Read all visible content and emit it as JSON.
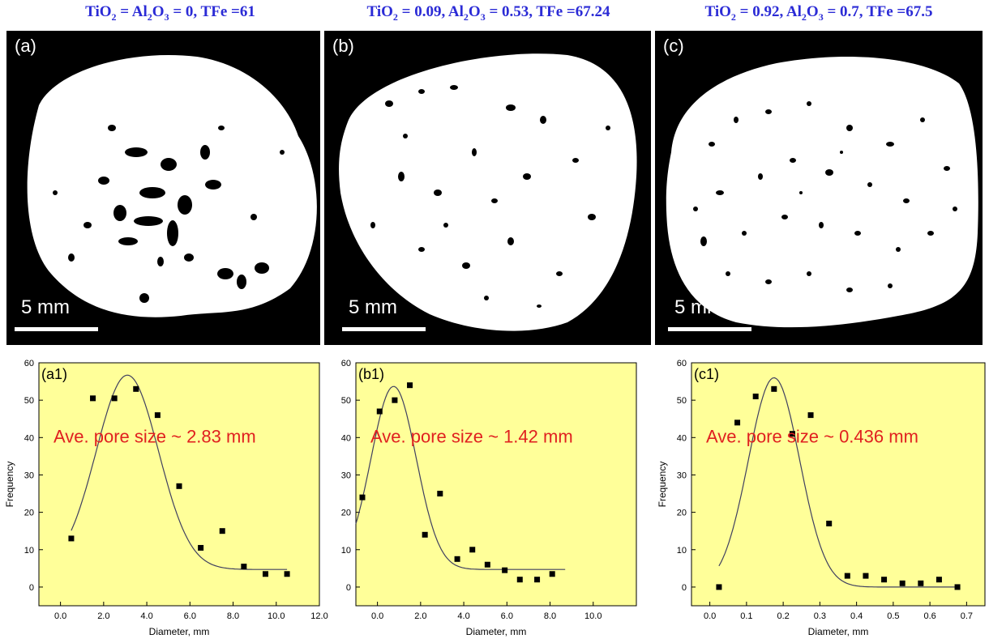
{
  "headers": [
    {
      "ti": "TiO",
      "ti_sub": "2",
      "eq1": " = ",
      "al": "Al",
      "al_sub1": "2",
      "o": "O",
      "al_sub2": "3",
      "rest": " = 0, TFe =61"
    },
    {
      "ti": "TiO",
      "ti_sub": "2",
      "eq1": " = 0.09, ",
      "al": "Al",
      "al_sub1": "2",
      "o": "O",
      "al_sub2": "3",
      "rest": " = 0.53, TFe =67.24"
    },
    {
      "ti": "TiO",
      "ti_sub": "2",
      "eq1": " = 0.92, ",
      "al": "Al",
      "al_sub1": "2",
      "o": "O",
      "al_sub2": "3",
      "rest": " = 0.7, TFe =67.5"
    }
  ],
  "images": [
    {
      "letter": "(a)",
      "scale_label": "5 mm"
    },
    {
      "letter": "(b)",
      "scale_label": "5 mm"
    },
    {
      "letter": "(c)",
      "scale_label": "5 mm"
    }
  ],
  "colors": {
    "header": "#2b2bd6",
    "plot_bg": "#ffff99",
    "annotation": "#e02020",
    "marker": "#000000",
    "fit": "#404060"
  },
  "chart_data": [
    {
      "type": "scatter",
      "panel_label": "(a1)",
      "annotation": "Ave. pore size ~ 2.83 mm",
      "xlabel": "Diameter, mm",
      "ylabel": "Frequency",
      "xlim": [
        -1,
        12
      ],
      "ylim": [
        -5,
        60
      ],
      "xticks": [
        0,
        2,
        4,
        6,
        8,
        10,
        12
      ],
      "xtick_labels": [
        "0.0",
        "2.0",
        "4.0",
        "6.0",
        "8.0",
        "10.0",
        "12.0"
      ],
      "yticks": [
        0,
        10,
        20,
        30,
        40,
        50,
        60
      ],
      "ytick_labels": [
        "0",
        "10",
        "20",
        "30",
        "40",
        "50",
        "60"
      ],
      "x": [
        0.5,
        1.5,
        2.5,
        3.5,
        4.5,
        5.5,
        6.5,
        7.5,
        8.5,
        9.5,
        10.5
      ],
      "y": [
        13,
        50.5,
        50.5,
        53,
        46,
        27,
        10.5,
        15,
        5.5,
        3.5,
        3.5
      ],
      "fit": {
        "y0": 4.7,
        "A": 52,
        "xc": 3.1,
        "w": 1.45,
        "x_from": 0.5,
        "x_to": 10.5
      }
    },
    {
      "type": "scatter",
      "panel_label": "(b1)",
      "annotation": "Ave. pore size ~ 1.42 mm",
      "xlabel": "Diameter, mm",
      "ylabel": "",
      "xlim": [
        -1,
        12
      ],
      "ylim": [
        -5,
        60
      ],
      "xticks": [
        0,
        2,
        4,
        6,
        8,
        10
      ],
      "xtick_labels": [
        "0.0",
        "2.0",
        "4.0",
        "6.0",
        "8.0",
        "10.0"
      ],
      "yticks": [
        0,
        10,
        20,
        30,
        40,
        50,
        60
      ],
      "ytick_labels": [
        "0",
        "10",
        "20",
        "30",
        "40",
        "50",
        "60"
      ],
      "x": [
        -0.7,
        0.1,
        0.8,
        1.5,
        2.2,
        2.9,
        3.7,
        4.4,
        5.1,
        5.9,
        6.6,
        7.4,
        8.1
      ],
      "y": [
        24,
        47,
        50,
        54,
        14,
        25,
        7.5,
        10,
        6,
        4.5,
        2,
        2,
        3.5
      ],
      "fit": {
        "y0": 4.7,
        "A": 49,
        "xc": 0.75,
        "w": 1.05,
        "x_from": -1,
        "x_to": 8.7
      }
    },
    {
      "type": "scatter",
      "panel_label": "(c1)",
      "annotation": "Ave. pore size ~ 0.436 mm",
      "xlabel": "Diameter, mm",
      "ylabel": "Frequency",
      "xlim": [
        -0.05,
        0.75
      ],
      "ylim": [
        -5,
        60
      ],
      "xticks": [
        0,
        0.1,
        0.2,
        0.3,
        0.4,
        0.5,
        0.6,
        0.7
      ],
      "xtick_labels": [
        "0.0",
        "0.1",
        "0.2",
        "0.3",
        "0.4",
        "0.5",
        "0.6",
        "0.7"
      ],
      "yticks": [
        0,
        10,
        20,
        30,
        40,
        50,
        60
      ],
      "ytick_labels": [
        "0",
        "10",
        "20",
        "30",
        "40",
        "50",
        "60"
      ],
      "x": [
        0.025,
        0.075,
        0.125,
        0.175,
        0.225,
        0.275,
        0.325,
        0.375,
        0.425,
        0.475,
        0.525,
        0.575,
        0.625,
        0.675
      ],
      "y": [
        0,
        44,
        51,
        53,
        41,
        46,
        17,
        3,
        3,
        2,
        1,
        1,
        2,
        0
      ],
      "fit": {
        "y0": 0,
        "A": 56,
        "xc": 0.175,
        "w": 0.07,
        "x_from": 0.025,
        "x_to": 0.675
      }
    }
  ]
}
